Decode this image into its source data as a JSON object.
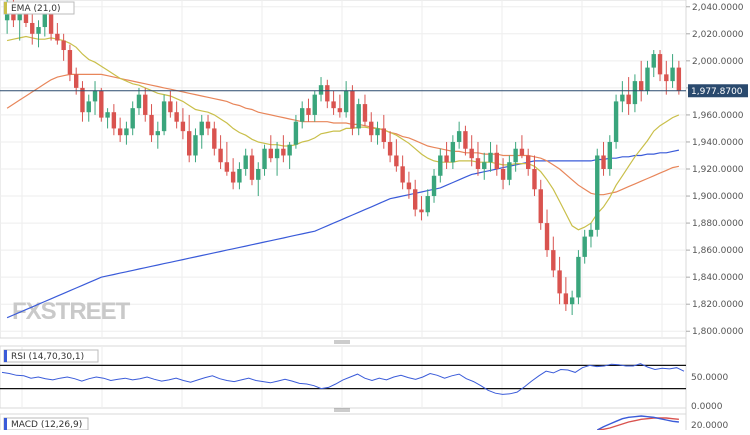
{
  "watermark": "FXSTREET",
  "chart_data": [
    {
      "type": "candlestick",
      "indicator_label": "EMA (21,0)",
      "y_ticks": [
        "2,040.0000",
        "2,020.0000",
        "2,000.0000",
        "1,980.0000",
        "1,960.0000",
        "1,940.0000",
        "1,920.0000",
        "1,900.0000",
        "1,880.0000",
        "1,860.0000",
        "1,840.0000",
        "1,820.0000",
        "1,800.0000"
      ],
      "ylim": [
        1795,
        2045
      ],
      "current_price_label": "1,977.8700",
      "current_price": 1977.87,
      "ohlc": [
        [
          2030,
          2048,
          2020,
          2040
        ],
        [
          2040,
          2045,
          2025,
          2030
        ],
        [
          2030,
          2040,
          2015,
          2035
        ],
        [
          2035,
          2042,
          2025,
          2028
        ],
        [
          2028,
          2035,
          2012,
          2020
        ],
        [
          2020,
          2030,
          2010,
          2025
        ],
        [
          2025,
          2040,
          2018,
          2035
        ],
        [
          2035,
          2038,
          2015,
          2020
        ],
        [
          2020,
          2028,
          2012,
          2015
        ],
        [
          2015,
          2020,
          2000,
          2008
        ],
        [
          2008,
          2012,
          1985,
          1990
        ],
        [
          1990,
          1995,
          1975,
          1980
        ],
        [
          1980,
          1985,
          1955,
          1962
        ],
        [
          1962,
          1975,
          1955,
          1970
        ],
        [
          1970,
          1985,
          1960,
          1978
        ],
        [
          1978,
          1980,
          1955,
          1958
        ],
        [
          1958,
          1965,
          1950,
          1962
        ],
        [
          1962,
          1968,
          1945,
          1950
        ],
        [
          1950,
          1958,
          1940,
          1945
        ],
        [
          1945,
          1955,
          1938,
          1950
        ],
        [
          1950,
          1970,
          1945,
          1965
        ],
        [
          1965,
          1980,
          1960,
          1975
        ],
        [
          1975,
          1980,
          1955,
          1960
        ],
        [
          1960,
          1968,
          1940,
          1945
        ],
        [
          1945,
          1955,
          1935,
          1948
        ],
        [
          1948,
          1975,
          1945,
          1970
        ],
        [
          1970,
          1978,
          1958,
          1962
        ],
        [
          1962,
          1970,
          1950,
          1955
        ],
        [
          1955,
          1965,
          1942,
          1948
        ],
        [
          1948,
          1960,
          1925,
          1930
        ],
        [
          1930,
          1950,
          1925,
          1945
        ],
        [
          1945,
          1960,
          1935,
          1955
        ],
        [
          1955,
          1960,
          1945,
          1950
        ],
        [
          1950,
          1955,
          1930,
          1935
        ],
        [
          1935,
          1945,
          1920,
          1925
        ],
        [
          1925,
          1940,
          1915,
          1918
        ],
        [
          1918,
          1928,
          1905,
          1910
        ],
        [
          1910,
          1925,
          1905,
          1920
        ],
        [
          1920,
          1935,
          1915,
          1930
        ],
        [
          1930,
          1935,
          1908,
          1912
        ],
        [
          1912,
          1925,
          1900,
          1920
        ],
        [
          1920,
          1938,
          1915,
          1935
        ],
        [
          1935,
          1945,
          1925,
          1928
        ],
        [
          1928,
          1940,
          1915,
          1935
        ],
        [
          1935,
          1945,
          1925,
          1930
        ],
        [
          1930,
          1940,
          1920,
          1938
        ],
        [
          1938,
          1960,
          1935,
          1955
        ],
        [
          1955,
          1970,
          1950,
          1965
        ],
        [
          1965,
          1972,
          1955,
          1960
        ],
        [
          1960,
          1978,
          1955,
          1975
        ],
        [
          1975,
          1988,
          1970,
          1982
        ],
        [
          1982,
          1986,
          1965,
          1970
        ],
        [
          1970,
          1978,
          1960,
          1965
        ],
        [
          1965,
          1975,
          1958,
          1962
        ],
        [
          1962,
          1985,
          1958,
          1978
        ],
        [
          1978,
          1982,
          1945,
          1950
        ],
        [
          1950,
          1972,
          1945,
          1968
        ],
        [
          1968,
          1975,
          1952,
          1955
        ],
        [
          1955,
          1962,
          1940,
          1945
        ],
        [
          1945,
          1955,
          1938,
          1950
        ],
        [
          1950,
          1960,
          1935,
          1940
        ],
        [
          1940,
          1948,
          1925,
          1930
        ],
        [
          1930,
          1942,
          1918,
          1922
        ],
        [
          1922,
          1930,
          1905,
          1910
        ],
        [
          1910,
          1918,
          1898,
          1905
        ],
        [
          1905,
          1912,
          1885,
          1890
        ],
        [
          1890,
          1900,
          1882,
          1888
        ],
        [
          1888,
          1905,
          1885,
          1900
        ],
        [
          1900,
          1920,
          1895,
          1915
        ],
        [
          1915,
          1935,
          1910,
          1930
        ],
        [
          1930,
          1940,
          1920,
          1925
        ],
        [
          1925,
          1945,
          1920,
          1940
        ],
        [
          1940,
          1955,
          1935,
          1948
        ],
        [
          1948,
          1952,
          1930,
          1935
        ],
        [
          1935,
          1945,
          1922,
          1928
        ],
        [
          1928,
          1940,
          1915,
          1920
        ],
        [
          1920,
          1932,
          1912,
          1925
        ],
        [
          1925,
          1940,
          1918,
          1932
        ],
        [
          1932,
          1938,
          1915,
          1920
        ],
        [
          1920,
          1928,
          1905,
          1912
        ],
        [
          1912,
          1930,
          1908,
          1925
        ],
        [
          1925,
          1940,
          1918,
          1935
        ],
        [
          1935,
          1945,
          1928,
          1930
        ],
        [
          1930,
          1935,
          1915,
          1920
        ],
        [
          1920,
          1930,
          1900,
          1905
        ],
        [
          1905,
          1912,
          1875,
          1880
        ],
        [
          1880,
          1890,
          1855,
          1860
        ],
        [
          1860,
          1870,
          1840,
          1845
        ],
        [
          1845,
          1855,
          1820,
          1828
        ],
        [
          1828,
          1840,
          1815,
          1820
        ],
        [
          1820,
          1830,
          1812,
          1825
        ],
        [
          1825,
          1860,
          1820,
          1855
        ],
        [
          1855,
          1875,
          1850,
          1870
        ],
        [
          1870,
          1880,
          1862,
          1875
        ],
        [
          1875,
          1935,
          1870,
          1930
        ],
        [
          1930,
          1940,
          1915,
          1920
        ],
        [
          1920,
          1945,
          1915,
          1940
        ],
        [
          1940,
          1975,
          1935,
          1970
        ],
        [
          1970,
          1985,
          1962,
          1975
        ],
        [
          1975,
          1988,
          1960,
          1968
        ],
        [
          1968,
          1990,
          1962,
          1985
        ],
        [
          1985,
          2000,
          1970,
          1978
        ],
        [
          1978,
          2000,
          1975,
          1995
        ],
        [
          1995,
          2008,
          1988,
          2005
        ],
        [
          2005,
          2008,
          1985,
          1990
        ],
        [
          1990,
          2000,
          1975,
          1985
        ],
        [
          1985,
          2005,
          1980,
          1995
        ],
        [
          1995,
          2000,
          1975,
          1977.87
        ]
      ],
      "ema21": [
        2015,
        2016,
        2017,
        2018,
        2017,
        2016,
        2016,
        2017,
        2016,
        2015,
        2013,
        2010,
        2005,
        2001,
        1999,
        1996,
        1993,
        1990,
        1987,
        1985,
        1983,
        1982,
        1980,
        1978,
        1976,
        1975,
        1974,
        1972,
        1970,
        1967,
        1964,
        1963,
        1962,
        1960,
        1957,
        1954,
        1950,
        1947,
        1945,
        1942,
        1940,
        1939,
        1938,
        1938,
        1937,
        1937,
        1938,
        1940,
        1941,
        1943,
        1946,
        1947,
        1948,
        1948,
        1950,
        1950,
        1951,
        1951,
        1950,
        1950,
        1949,
        1947,
        1945,
        1942,
        1939,
        1935,
        1931,
        1928,
        1926,
        1925,
        1925,
        1925,
        1926,
        1926,
        1926,
        1925,
        1925,
        1925,
        1924,
        1923,
        1923,
        1924,
        1924,
        1924,
        1922,
        1918,
        1912,
        1905,
        1896,
        1887,
        1878,
        1875,
        1877,
        1880,
        1887,
        1892,
        1899,
        1908,
        1915,
        1922,
        1929,
        1935,
        1941,
        1948,
        1952,
        1955,
        1958,
        1960
      ],
      "ema70": [
        1965,
        1968,
        1971,
        1974,
        1977,
        1980,
        1983,
        1986,
        1988,
        1989,
        1990,
        1990,
        1990,
        1990,
        1990,
        1990,
        1989,
        1988,
        1987,
        1986,
        1985,
        1984,
        1983,
        1982,
        1981,
        1980,
        1979,
        1978,
        1977,
        1976,
        1975,
        1974,
        1973,
        1972,
        1971,
        1970,
        1968,
        1967,
        1965,
        1964,
        1962,
        1961,
        1960,
        1959,
        1958,
        1957,
        1956,
        1955,
        1955,
        1955,
        1955,
        1955,
        1954,
        1954,
        1954,
        1953,
        1953,
        1952,
        1951,
        1950,
        1949,
        1947,
        1946,
        1944,
        1943,
        1941,
        1939,
        1937,
        1936,
        1935,
        1934,
        1933,
        1933,
        1932,
        1932,
        1932,
        1931,
        1931,
        1931,
        1930,
        1930,
        1930,
        1930,
        1930,
        1929,
        1928,
        1926,
        1923,
        1920,
        1916,
        1912,
        1908,
        1905,
        1902,
        1901,
        1901,
        1902,
        1903,
        1905,
        1907,
        1909,
        1911,
        1913,
        1915,
        1917,
        1919,
        1921,
        1922
      ],
      "ema200": [
        1810,
        1812,
        1814,
        1816,
        1818,
        1820,
        1822,
        1824,
        1826,
        1828,
        1830,
        1832,
        1834,
        1836,
        1838,
        1840,
        1841,
        1842,
        1843,
        1844,
        1845,
        1846,
        1847,
        1848,
        1849,
        1850,
        1851,
        1852,
        1853,
        1854,
        1855,
        1856,
        1857,
        1858,
        1859,
        1860,
        1861,
        1862,
        1863,
        1864,
        1865,
        1866,
        1867,
        1868,
        1869,
        1870,
        1871,
        1872,
        1873,
        1874,
        1876,
        1878,
        1880,
        1882,
        1884,
        1886,
        1888,
        1890,
        1892,
        1894,
        1896,
        1898,
        1899,
        1900,
        1901,
        1902,
        1903,
        1904,
        1905,
        1906,
        1908,
        1910,
        1912,
        1914,
        1916,
        1917,
        1918,
        1919,
        1920,
        1921,
        1922,
        1923,
        1924,
        1925,
        1926,
        1926,
        1926,
        1926,
        1926,
        1926,
        1926,
        1926,
        1926,
        1926,
        1927,
        1927,
        1928,
        1928,
        1929,
        1929,
        1930,
        1930,
        1931,
        1931,
        1932,
        1932,
        1933,
        1934
      ]
    },
    {
      "type": "line",
      "indicator_label": "RSI (14,70,30,1)",
      "y_ticks": [
        "50.0000",
        "0.0000"
      ],
      "ylim": [
        0,
        100
      ],
      "bands": [
        70,
        30
      ],
      "values": [
        58,
        56,
        53,
        52,
        48,
        50,
        47,
        45,
        48,
        50,
        47,
        43,
        47,
        50,
        48,
        44,
        46,
        48,
        45,
        47,
        50,
        46,
        43,
        45,
        48,
        44,
        41,
        45,
        49,
        52,
        47,
        44,
        42,
        45,
        48,
        44,
        42,
        40,
        43,
        46,
        43,
        39,
        38,
        35,
        30,
        32,
        38,
        45,
        50,
        55,
        48,
        44,
        48,
        45,
        50,
        53,
        49,
        46,
        50,
        56,
        53,
        48,
        52,
        55,
        47,
        42,
        35,
        27,
        22,
        20,
        21,
        24,
        33,
        43,
        52,
        60,
        57,
        63,
        62,
        58,
        66,
        70,
        68,
        69,
        72,
        71,
        69,
        69,
        73,
        67,
        63,
        65,
        64,
        66,
        60
      ]
    },
    {
      "type": "line",
      "indicator_label": "MACD (12,26,9)",
      "y_ticks": [
        "20.0000"
      ],
      "ylim": [
        0,
        24
      ],
      "macd": [
        0,
        0,
        0,
        0,
        0,
        0,
        0,
        0,
        0,
        0,
        0,
        0,
        0,
        0,
        0,
        0,
        0,
        0,
        0,
        0,
        0,
        0,
        0,
        0,
        0,
        0,
        0,
        0,
        0,
        0,
        0,
        0,
        0,
        0,
        0,
        0,
        0,
        0,
        0,
        0,
        0,
        0,
        0,
        0,
        0,
        0,
        0,
        0,
        0,
        0,
        0,
        0,
        0,
        0,
        0,
        0,
        0,
        0,
        0,
        0,
        0,
        0,
        0,
        0,
        0,
        0,
        0,
        0,
        0,
        0,
        0,
        0,
        0,
        0,
        0,
        0,
        0,
        0,
        0,
        0,
        0,
        0,
        0,
        0,
        0,
        0,
        0,
        0,
        0,
        0,
        0,
        0,
        0,
        0,
        0,
        5,
        9,
        13,
        17,
        19,
        20,
        21,
        20,
        19,
        17,
        15,
        13,
        12
      ],
      "signal": [
        0,
        0,
        0,
        0,
        0,
        0,
        0,
        0,
        0,
        0,
        0,
        0,
        0,
        0,
        0,
        0,
        0,
        0,
        0,
        0,
        0,
        0,
        0,
        0,
        0,
        0,
        0,
        0,
        0,
        0,
        0,
        0,
        0,
        0,
        0,
        0,
        0,
        0,
        0,
        0,
        0,
        0,
        0,
        0,
        0,
        0,
        0,
        0,
        0,
        0,
        0,
        0,
        0,
        0,
        0,
        0,
        0,
        0,
        0,
        0,
        0,
        0,
        0,
        0,
        0,
        0,
        0,
        0,
        0,
        0,
        0,
        0,
        0,
        0,
        0,
        0,
        0,
        0,
        0,
        0,
        0,
        0,
        0,
        0,
        0,
        0,
        0,
        0,
        0,
        0,
        0,
        0,
        0,
        0,
        0,
        1,
        3,
        6,
        9,
        12,
        14,
        16,
        17,
        18,
        18,
        18,
        17,
        16
      ]
    }
  ],
  "colors": {
    "bull": "#3aa57c",
    "bear": "#d9534f",
    "ema21": "#c9bf4a",
    "ema70": "#e8865a",
    "ema200": "#3a5bd9",
    "rsi": "#3a5bd9",
    "macd": "#3a5bd9",
    "signal": "#d9534f",
    "price_line": "#2a4a6e",
    "price_label_bg": "#2a4a6e"
  }
}
